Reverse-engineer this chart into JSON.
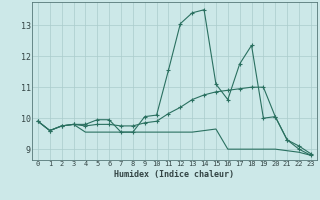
{
  "xlabel": "Humidex (Indice chaleur)",
  "bg_color": "#cce8e8",
  "grid_color_minor": "#bbdddd",
  "grid_color_major": "#99cccc",
  "line_color": "#2a7060",
  "xlim": [
    -0.5,
    23.5
  ],
  "ylim": [
    8.65,
    13.75
  ],
  "xticks": [
    0,
    1,
    2,
    3,
    4,
    5,
    6,
    7,
    8,
    9,
    10,
    11,
    12,
    13,
    14,
    15,
    16,
    17,
    18,
    19,
    20,
    21,
    22,
    23
  ],
  "yticks": [
    9,
    10,
    11,
    12,
    13
  ],
  "line1_x": [
    0,
    1,
    2,
    3,
    4,
    5,
    6,
    7,
    8,
    9,
    10,
    11,
    12,
    13,
    14,
    15,
    16,
    17,
    18,
    19,
    20,
    21,
    22,
    23
  ],
  "line1_y": [
    9.9,
    9.6,
    9.75,
    9.8,
    9.8,
    9.95,
    9.95,
    9.55,
    9.55,
    10.05,
    10.1,
    11.55,
    13.05,
    13.4,
    13.5,
    11.1,
    10.6,
    11.75,
    12.35,
    10.0,
    10.05,
    9.3,
    9.0,
    8.8
  ],
  "line2_x": [
    0,
    1,
    2,
    3,
    4,
    5,
    6,
    7,
    8,
    9,
    10,
    11,
    12,
    13,
    14,
    15,
    16,
    17,
    18,
    19,
    20,
    21,
    22,
    23
  ],
  "line2_y": [
    9.9,
    9.6,
    9.75,
    9.8,
    9.75,
    9.8,
    9.8,
    9.75,
    9.75,
    9.85,
    9.9,
    10.15,
    10.35,
    10.6,
    10.75,
    10.85,
    10.9,
    10.95,
    11.0,
    11.0,
    10.05,
    9.3,
    9.1,
    8.85
  ],
  "line3_x": [
    0,
    1,
    2,
    3,
    4,
    5,
    6,
    7,
    8,
    9,
    10,
    11,
    12,
    13,
    14,
    15,
    16,
    17,
    18,
    19,
    20,
    21,
    22,
    23
  ],
  "line3_y": [
    9.9,
    9.6,
    9.75,
    9.8,
    9.55,
    9.55,
    9.55,
    9.55,
    9.55,
    9.55,
    9.55,
    9.55,
    9.55,
    9.55,
    9.6,
    9.65,
    9.0,
    9.0,
    9.0,
    9.0,
    9.0,
    8.95,
    8.9,
    8.8
  ]
}
